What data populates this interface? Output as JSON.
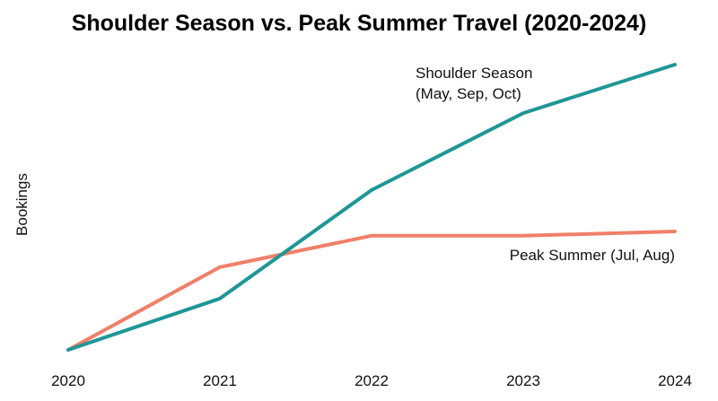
{
  "chart_data": {
    "type": "line",
    "title": "Shoulder Season vs. Peak Summer Travel (2020-2024)",
    "xlabel": "",
    "ylabel": "Bookings",
    "x": [
      "2020",
      "2021",
      "2022",
      "2023",
      "2024"
    ],
    "ylim": [
      0,
      100
    ],
    "grid": false,
    "legend": "direct-labels",
    "series": [
      {
        "name_lines": [
          "Shoulder Season",
          "(May, Sep, Oct)"
        ],
        "values": [
          0,
          18,
          56,
          83,
          100
        ],
        "color": "#1f9696"
      },
      {
        "name_lines": [
          "Peak Summer (Jul, Aug)"
        ],
        "values": [
          0,
          29,
          40,
          40,
          41.5
        ],
        "color": "#f07f6a"
      }
    ]
  }
}
